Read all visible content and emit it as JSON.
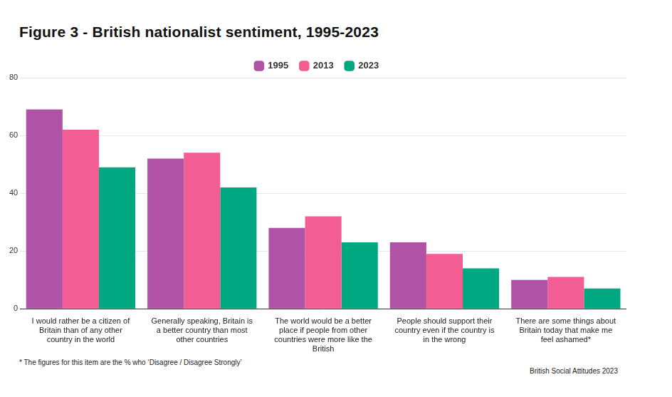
{
  "chart_data": {
    "type": "bar",
    "title": "Figure 3 - British nationalist sentiment, 1995-2023",
    "categories": [
      "I would rather be a citizen of Britain than of any other country in the world",
      "Generally speaking, Britain is a better country than most other countries",
      "The world would be a better place if people from other countries were more like the British",
      "People should support their country even if the country is in the wrong",
      "There are some things about Britain today that make me feel ashamed*"
    ],
    "series": [
      {
        "name": "1995",
        "color": "#b052a6",
        "values": [
          69,
          52,
          28,
          23,
          10
        ]
      },
      {
        "name": "2013",
        "color": "#f25e93",
        "values": [
          62,
          54,
          32,
          19,
          11
        ]
      },
      {
        "name": "2023",
        "color": "#00a882",
        "values": [
          49,
          42,
          23,
          14,
          7
        ]
      }
    ],
    "ylim": [
      0,
      80
    ],
    "yticks": [
      0,
      20,
      40,
      60,
      80
    ],
    "grid": true,
    "legend": "top",
    "footnote": "* The figures for this item are the % who ‘Disagree / Disagree Strongly’",
    "source": "British Social Attitudes 2023"
  }
}
